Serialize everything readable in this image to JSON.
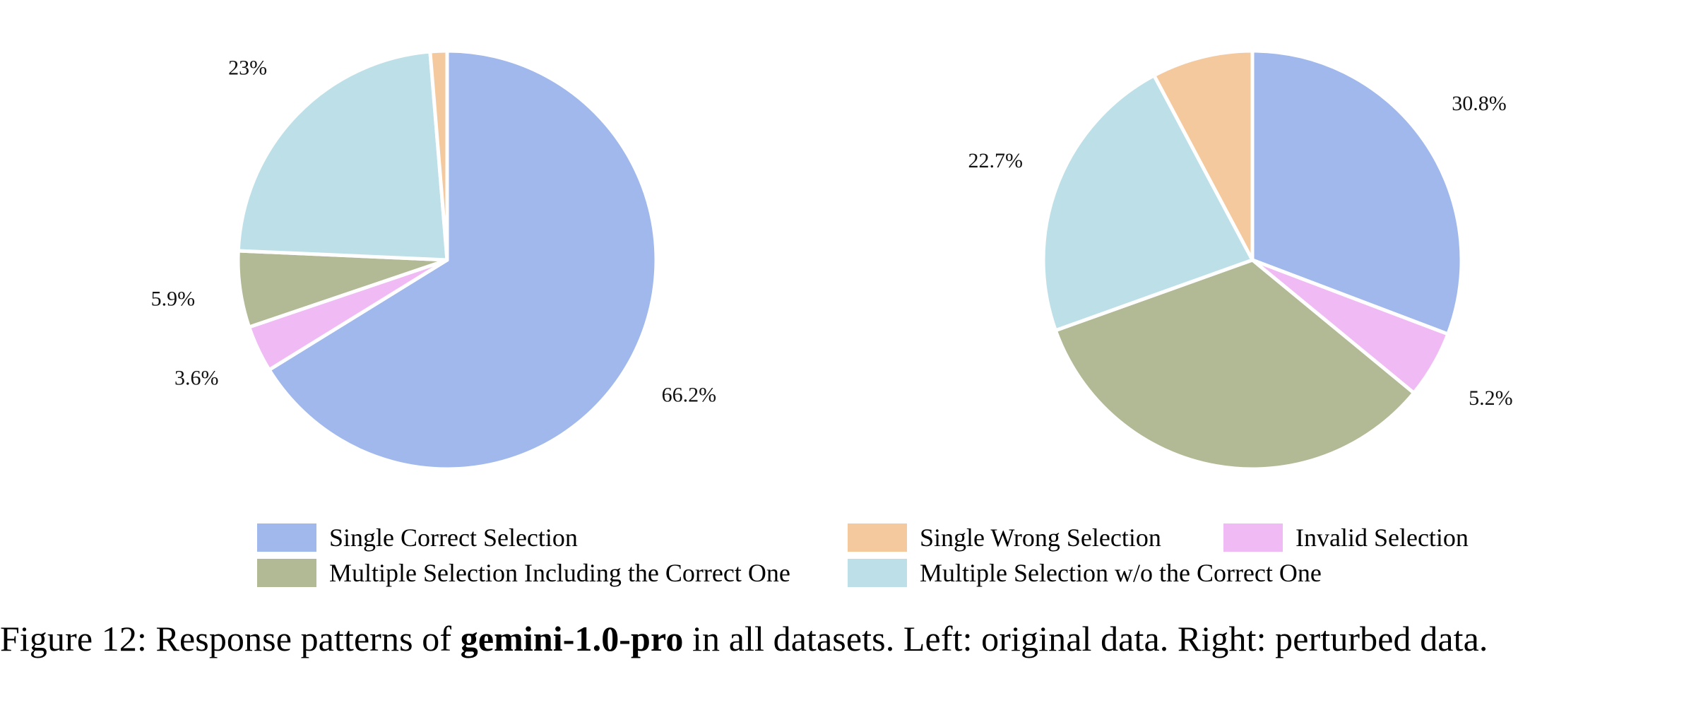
{
  "chart_data": [
    {
      "type": "pie",
      "title": "",
      "slices": [
        {
          "label": "Single Correct Selection",
          "value": 66.2,
          "value_label": "66.2%",
          "color": "#a0b8ec"
        },
        {
          "label": "Invalid Selection",
          "value": 3.6,
          "value_label": "3.6%",
          "color": "#f0baf4"
        },
        {
          "label": "Multiple Selection Including the Correct One",
          "value": 5.9,
          "value_label": "5.9%",
          "color": "#b2b995"
        },
        {
          "label": "Multiple Selection w/o the Correct One",
          "value": 23,
          "value_label": "23%",
          "color": "#bde0e8"
        },
        {
          "label": "Single Wrong Selection",
          "value": 1.3,
          "value_label": "1.3%",
          "color": "#f4c99e"
        }
      ],
      "start": "12 o'clock",
      "direction": "clockwise"
    },
    {
      "type": "pie",
      "title": "",
      "slices": [
        {
          "label": "Single Correct Selection",
          "value": 30.8,
          "value_label": "30.8%",
          "color": "#a0b8ec"
        },
        {
          "label": "Invalid Selection",
          "value": 5.2,
          "value_label": "5.2%",
          "color": "#f0baf4"
        },
        {
          "label": "Multiple Selection Including the Correct One",
          "value": 33.6,
          "value_label": "33.6%",
          "color": "#b2b995"
        },
        {
          "label": "Multiple Selection w/o the Correct One",
          "value": 22.7,
          "value_label": "22.7%",
          "color": "#bde0e8"
        },
        {
          "label": "Single Wrong Selection",
          "value": 7.8,
          "value_label": "7.8%",
          "color": "#f4c99e"
        }
      ],
      "start": "12 o'clock",
      "direction": "clockwise"
    }
  ],
  "legend": {
    "items": [
      {
        "label": "Single Correct Selection",
        "color": "#a0b8ec"
      },
      {
        "label": "Single Wrong Selection",
        "color": "#f4c99e"
      },
      {
        "label": "Invalid Selection",
        "color": "#f0baf4"
      },
      {
        "label": "Multiple Selection Including the Correct One",
        "color": "#b2b995"
      },
      {
        "label": "Multiple Selection w/o the Correct One",
        "color": "#bde0e8"
      }
    ]
  },
  "caption": {
    "prefix": "Figure 12: Response patterns of ",
    "model": "gemini-1.0-pro",
    "suffix": " in all datasets. Left: original data. Right: perturbed data."
  }
}
